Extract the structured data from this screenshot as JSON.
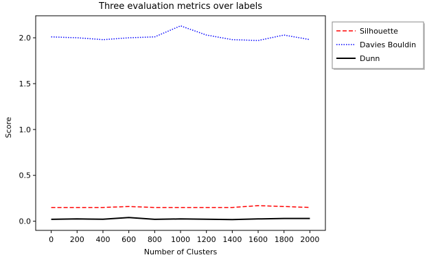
{
  "chart_data": {
    "type": "line",
    "title": "Three evaluation metrics over labels",
    "xlabel": "Number of Clusters",
    "ylabel": "Score",
    "xlim": [
      -120,
      2120
    ],
    "ylim": [
      -0.1,
      2.24
    ],
    "xticks": [
      0,
      200,
      400,
      600,
      800,
      1000,
      1200,
      1400,
      1600,
      1800,
      2000
    ],
    "xtick_labels": [
      "0",
      "200",
      "400",
      "600",
      "800",
      "1000",
      "1200",
      "1400",
      "1600",
      "1800",
      "2000"
    ],
    "yticks": [
      0.0,
      0.5,
      1.0,
      1.5,
      2.0
    ],
    "ytick_labels": [
      "0.0",
      "0.5",
      "1.0",
      "1.5",
      "2.0"
    ],
    "grid": false,
    "legend_position": "outside-top-right",
    "x": [
      0,
      200,
      400,
      600,
      800,
      1000,
      1200,
      1400,
      1600,
      1800,
      2000
    ],
    "series": [
      {
        "name": "Silhouette",
        "color": "#ff0000",
        "style": "dashed",
        "values": [
          0.15,
          0.15,
          0.15,
          0.16,
          0.15,
          0.15,
          0.15,
          0.15,
          0.17,
          0.16,
          0.15
        ]
      },
      {
        "name": "Davies Bouldin",
        "color": "#0000ff",
        "style": "dotted",
        "values": [
          2.01,
          2.0,
          1.98,
          2.0,
          2.01,
          2.13,
          2.03,
          1.98,
          1.97,
          2.03,
          1.98
        ]
      },
      {
        "name": "Dunn",
        "color": "#000000",
        "style": "solid",
        "values": [
          0.02,
          0.025,
          0.022,
          0.04,
          0.02,
          0.025,
          0.022,
          0.018,
          0.025,
          0.03,
          0.03
        ]
      }
    ]
  }
}
